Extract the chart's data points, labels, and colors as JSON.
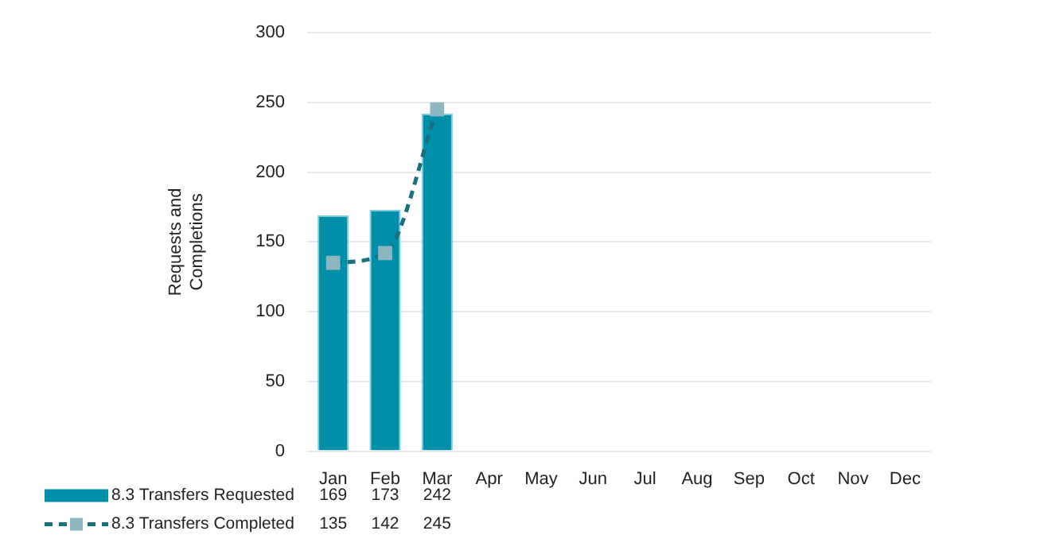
{
  "chart_data": {
    "type": "bar",
    "ylabel": "Requests and Completions",
    "categories": [
      "Jan",
      "Feb",
      "Mar",
      "Apr",
      "May",
      "Jun",
      "Jul",
      "Aug",
      "Sep",
      "Oct",
      "Nov",
      "Dec"
    ],
    "series": [
      {
        "name": "8.3 Transfers Requested",
        "color": "#008fa8",
        "values": [
          169,
          173,
          242,
          null,
          null,
          null,
          null,
          null,
          null,
          null,
          null,
          null
        ]
      },
      {
        "name": "8.3 Transfers Completed",
        "type": "line",
        "color": "#1a6f80",
        "marker": "square",
        "line_style": "dashed",
        "values": [
          135,
          142,
          245,
          null,
          null,
          null,
          null,
          null,
          null,
          null,
          null,
          null
        ]
      }
    ],
    "ylim": [
      0,
      300
    ],
    "yticks": [
      0,
      50,
      100,
      150,
      200,
      250,
      300
    ],
    "grid": "y",
    "legend": "bottom",
    "data_labels": true
  }
}
